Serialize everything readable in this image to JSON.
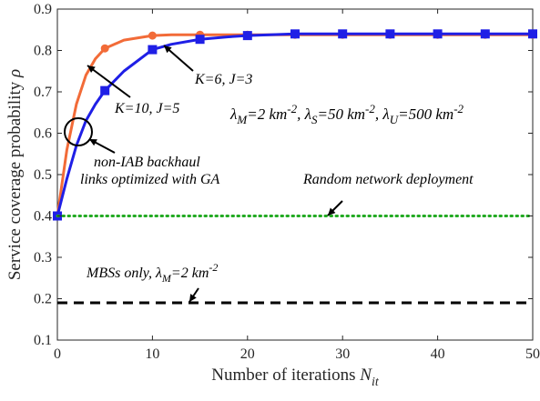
{
  "chart_data": {
    "type": "line",
    "xlabel": "Number of iterations",
    "xlabel_sub": "it",
    "xlabel_var": "N",
    "ylabel": "Service coverage probability",
    "ylabel_var": "ρ",
    "xlim": [
      0,
      50
    ],
    "ylim": [
      0.1,
      0.9
    ],
    "x_ticks": [
      0,
      10,
      20,
      30,
      40,
      50
    ],
    "x_tick_labels": [
      "0",
      "10",
      "20",
      "30",
      "40",
      "50"
    ],
    "y_ticks": [
      0.1,
      0.2,
      0.3,
      0.4,
      0.5,
      0.6,
      0.7,
      0.8,
      0.9
    ],
    "y_tick_labels": [
      "0.1",
      "0.2",
      "0.3",
      "0.4",
      "0.5",
      "0.6",
      "0.7",
      "0.8",
      "0.9"
    ],
    "grid": false,
    "series": [
      {
        "color": "#f26b38",
        "marker": "circle",
        "line_style": "solid",
        "x": [
          0,
          1,
          2,
          3,
          4,
          5,
          7,
          10,
          12,
          15,
          20,
          25,
          30,
          35,
          40,
          45,
          50
        ],
        "values": [
          0.4,
          0.56,
          0.67,
          0.74,
          0.78,
          0.805,
          0.825,
          0.836,
          0.838,
          0.838,
          0.838,
          0.838,
          0.838,
          0.838,
          0.838,
          0.838,
          0.838
        ],
        "marker_x": [
          0,
          5,
          10,
          15,
          20,
          25,
          30,
          35,
          40,
          45,
          50
        ]
      },
      {
        "color": "#1f1fe6",
        "marker": "square",
        "line_style": "solid",
        "x": [
          0,
          1,
          2,
          3,
          4,
          5,
          7,
          10,
          12,
          15,
          18,
          20,
          25,
          30,
          35,
          40,
          45,
          50
        ],
        "values": [
          0.4,
          0.49,
          0.57,
          0.63,
          0.67,
          0.703,
          0.75,
          0.802,
          0.815,
          0.827,
          0.833,
          0.836,
          0.84,
          0.84,
          0.84,
          0.84,
          0.84,
          0.84
        ],
        "marker_x": [
          0,
          5,
          10,
          15,
          20,
          25,
          30,
          35,
          40,
          45,
          50
        ]
      },
      {
        "color": "#22aa22",
        "line_style": "dotted",
        "x": [
          0,
          50
        ],
        "values": [
          0.4,
          0.4
        ]
      },
      {
        "color": "#000000",
        "line_style": "dashed",
        "x": [
          0,
          50
        ],
        "values": [
          0.19,
          0.19
        ]
      }
    ],
    "annotations": {
      "k6": "K=6, J=3",
      "k10": "K=10, J=5",
      "density": "λM=2 km-2, λS=50 km-2, λU=500 km-2",
      "nonIab1": "non-IAB backhaul",
      "nonIab2": "links optimized with GA",
      "random": "Random network deployment",
      "mbs": "MBSs only, λM=2 km-2"
    }
  }
}
